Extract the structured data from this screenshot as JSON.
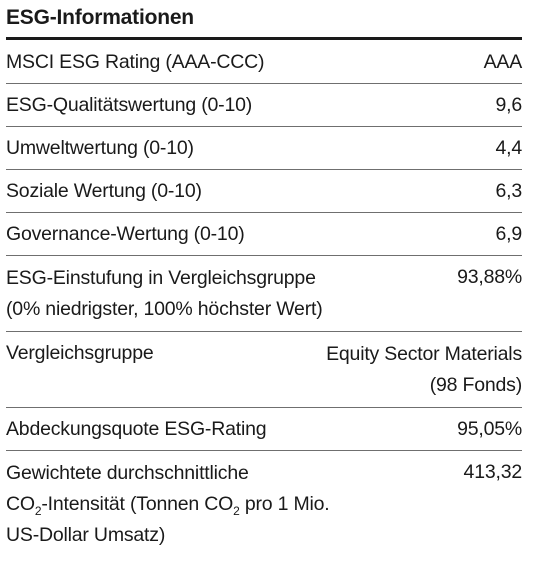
{
  "title": "ESG-Informationen",
  "rows": [
    {
      "label": "MSCI ESG Rating (AAA-CCC)",
      "value": "AAA"
    },
    {
      "label": "ESG-Qualitätswertung (0-10)",
      "value": "9,6"
    },
    {
      "label": "Umweltwertung (0-10)",
      "value": "4,4"
    },
    {
      "label": "Soziale Wertung (0-10)",
      "value": "6,3"
    },
    {
      "label": "Governance-Wertung (0-10)",
      "value": "6,9"
    },
    {
      "label_line1": "ESG-Einstufung in Vergleichsgruppe",
      "label_line2": "(0% niedrigster, 100% höchster Wert)",
      "value": "93,88%"
    },
    {
      "label": "Vergleichsgruppe",
      "value_line1": "Equity Sector Materials",
      "value_line2": "(98 Fonds)"
    },
    {
      "label": "Abdeckungsquote ESG-Rating",
      "value": "95,05%"
    },
    {
      "label_line1": "Gewichtete durchschnittliche",
      "label_line2_a": "CO",
      "label_line2_sub1": "2",
      "label_line2_b": "-Intensität (Tonnen CO",
      "label_line2_sub2": "2",
      "label_line2_c": " pro 1 Mio.",
      "label_line3": "US-Dollar Umsatz)",
      "value": "413,32"
    }
  ]
}
